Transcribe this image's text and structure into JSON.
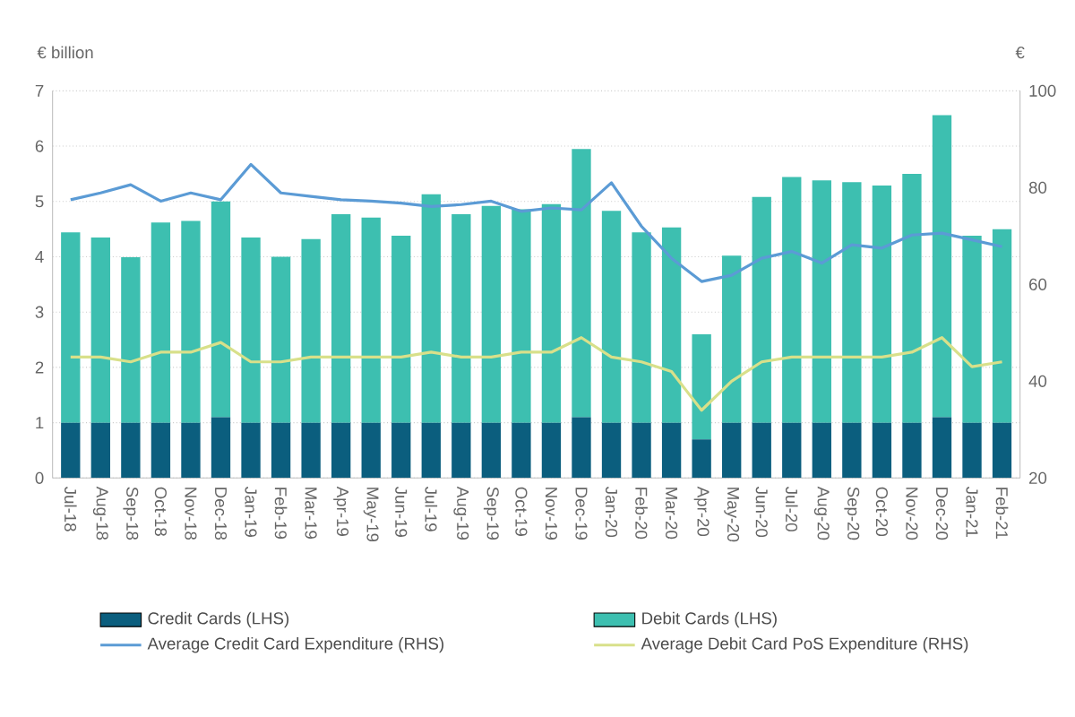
{
  "chart_data": {
    "type": "bar",
    "stacked": true,
    "ylabel": "€ billion",
    "y2label": "€",
    "categories": [
      "Jul-18",
      "Aug-18",
      "Sep-18",
      "Oct-18",
      "Nov-18",
      "Dec-18",
      "Jan-19",
      "Feb-19",
      "Mar-19",
      "Apr-19",
      "May-19",
      "Jun-19",
      "Jul-19",
      "Aug-19",
      "Sep-19",
      "Oct-19",
      "Nov-19",
      "Dec-19",
      "Jan-20",
      "Feb-20",
      "Mar-20",
      "Apr-20",
      "May-20",
      "Jun-20",
      "Jul-20",
      "Aug-20",
      "Sep-20",
      "Oct-20",
      "Nov-20",
      "Dec-20",
      "Jan-21",
      "Feb-21"
    ],
    "series": [
      {
        "name": "Credit Cards (LHS)",
        "color": "#0b5e7e",
        "values": [
          1.0,
          1.0,
          1.0,
          1.0,
          1.0,
          1.1,
          1.0,
          1.0,
          1.0,
          1.0,
          1.0,
          1.0,
          1.0,
          1.0,
          1.0,
          1.0,
          1.0,
          1.1,
          1.0,
          1.0,
          1.0,
          0.7,
          1.0,
          1.0,
          1.0,
          1.0,
          1.0,
          1.0,
          1.0,
          1.1,
          1.0,
          1.0
        ]
      },
      {
        "name": "Debit Cards (LHS)",
        "color": "#3dbfb0",
        "values": [
          3.44,
          3.35,
          2.99,
          3.62,
          3.65,
          3.9,
          3.35,
          3.0,
          3.32,
          3.77,
          3.71,
          3.38,
          4.13,
          3.77,
          3.92,
          3.86,
          3.95,
          4.85,
          3.83,
          3.44,
          3.53,
          1.9,
          3.02,
          4.08,
          4.44,
          4.38,
          4.35,
          4.29,
          4.5,
          5.46,
          3.38,
          3.5
        ]
      },
      {
        "name": "Average Credit Card Expenditure (RHS)",
        "type": "line",
        "axis": "y2",
        "color": "#5b9bd5",
        "values": [
          77.5,
          78.9,
          80.6,
          77.2,
          78.9,
          77.5,
          84.8,
          78.9,
          78.2,
          77.5,
          77.2,
          76.8,
          76.1,
          76.5,
          77.2,
          75.1,
          75.8,
          75.4,
          81.0,
          72.0,
          65.4,
          60.6,
          61.9,
          65.4,
          66.8,
          64.4,
          68.2,
          67.5,
          70.2,
          70.6,
          69.2,
          67.8
        ]
      },
      {
        "name": "Average Debit Card PoS Expenditure (RHS)",
        "type": "line",
        "axis": "y2",
        "color": "#d8e08a",
        "values": [
          45,
          45,
          44,
          46,
          46,
          48,
          44,
          44,
          45,
          45,
          45,
          45,
          46,
          45,
          45,
          46,
          46,
          49,
          45,
          44,
          42,
          34,
          40,
          44,
          45,
          45,
          45,
          45,
          46,
          49,
          43,
          44
        ]
      }
    ],
    "ylim": [
      0,
      7
    ],
    "yticks": [
      0,
      1,
      2,
      3,
      4,
      5,
      6,
      7
    ],
    "y2lim": [
      20,
      100
    ],
    "y2ticks": [
      20,
      40,
      60,
      80,
      100
    ],
    "grid": "y",
    "legend": "bottom"
  }
}
